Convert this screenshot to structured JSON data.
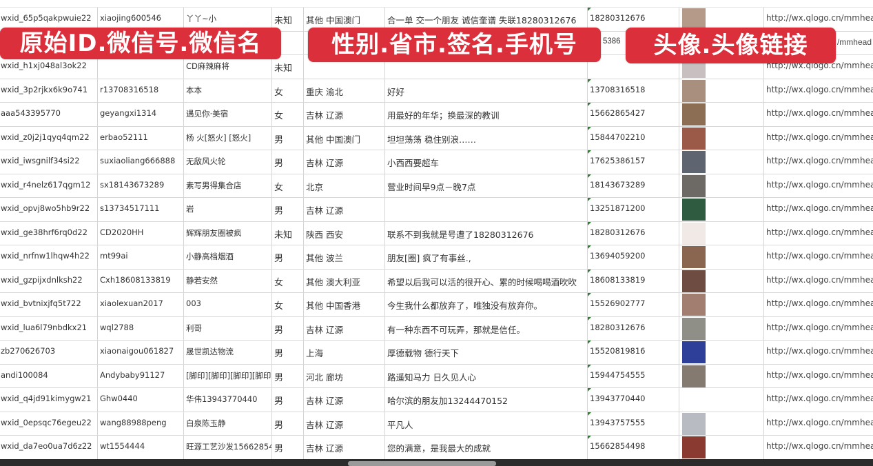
{
  "overlays": {
    "label_1": "原始ID.微信号.微信名",
    "label_2": "性别.省市.签名.手机号",
    "label_3": "头像.头像链接"
  },
  "colors": {
    "overlay": "#db2f3b"
  },
  "rows": [
    {
      "id": "wxid_65p5qakpwuie22",
      "wxid": "xiaojing600546",
      "name": "丫丫~小",
      "gender": "未知",
      "region": "其他 中国澳门",
      "sign": "合一单 交一个朋友 诚信奎谱 失联18280312676",
      "phone": "18280312676",
      "avatar_color": "#b59a8a",
      "url": "http://wx.qlogo.cn/mmhead"
    },
    {
      "id": "",
      "wxid": "",
      "name": "",
      "gender": "",
      "region": "",
      "sign": "",
      "phone": "5386",
      "avatar_color": "#7a8fb0",
      "url": "/mmhead"
    },
    {
      "id": "wxid_h1xj048al3ok22",
      "wxid": "",
      "name": "CD麻辣麻将",
      "gender": "未知",
      "region": "",
      "sign": "",
      "phone": "",
      "avatar_color": "#c8c0c0",
      "url": "http://wx.qlogo.cn/mmhead"
    },
    {
      "id": "wxid_3p2rjkx6k9o741",
      "wxid": "r13708316518",
      "name": "本本",
      "gender": "女",
      "region": "重庆 渝北",
      "sign": "好好",
      "phone": "13708316518",
      "avatar_color": "#a88f7e",
      "url": "http://wx.qlogo.cn/mmhead"
    },
    {
      "id": "aaa543395770",
      "wxid": "geyangxi1314",
      "name": "遇见你·美宿",
      "gender": "女",
      "region": "吉林 辽源",
      "sign": "用最好的年华；换最深的教训",
      "phone": "15662865427",
      "avatar_color": "#8c6e55",
      "url": "http://wx.qlogo.cn/mmhead"
    },
    {
      "id": "wxid_z0j2j1qyq4qm22",
      "wxid": "erbao52111",
      "name": "杨 火[怒火] [怒火]",
      "gender": "男",
      "region": "其他 中国澳门",
      "sign": "坦坦荡荡 稳住别浪……",
      "phone": "15844702210",
      "avatar_color": "#9b5a48",
      "url": "http://wx.qlogo.cn/mmhead"
    },
    {
      "id": "wxid_iwsgnilf34si22",
      "wxid": "suxiaoliang666888",
      "name": "无敌风火轮",
      "gender": "男",
      "region": "吉林 辽源",
      "sign": "小西西要超车",
      "phone": "17625386157",
      "avatar_color": "#5e6470",
      "url": "http://wx.qlogo.cn/mmhead"
    },
    {
      "id": "wxid_r4nelz617qgm12",
      "wxid": "sx18143673289",
      "name": "素写男得集合店",
      "gender": "女",
      "region": "北京",
      "sign": "营业时间早9点－晚7点",
      "phone": "18143673289",
      "avatar_color": "#6d6a66",
      "url": "http://wx.qlogo.cn/mmhead"
    },
    {
      "id": "wxid_opvj8wo5hb9r22",
      "wxid": "s13734517111",
      "name": "岩",
      "gender": "男",
      "region": "吉林 辽源",
      "sign": "",
      "phone": "13251871200",
      "avatar_color": "#2f5b40",
      "url": "http://wx.qlogo.cn/mmhead"
    },
    {
      "id": "wxid_ge38hrf6rq0d22",
      "wxid": "CD2020HH",
      "name": "辉辉朋友圈被疯",
      "gender": "未知",
      "region": "陕西 西安",
      "sign": "联系不到我就是号遭了18280312676",
      "phone": "18280312676",
      "avatar_color": "#f1e9e6",
      "url": "http://wx.qlogo.cn/mmhead"
    },
    {
      "id": "wxid_nrfnw1lhqw4h22",
      "wxid": "mt99ai",
      "name": "小静高档烟酒",
      "gender": "男",
      "region": "其他 波兰",
      "sign": "朋友[圈] 疯了有事丝.,",
      "phone": "13694059200",
      "avatar_color": "#8a6650",
      "url": "http://wx.qlogo.cn/mmhead"
    },
    {
      "id": "wxid_gzpijxdnlksh22",
      "wxid": "Cxh18608133819",
      "name": "静若安然",
      "gender": "女",
      "region": "其他 澳大利亚",
      "sign": "希望以后我可以活的很开心、累的时候喝喝酒吹吹",
      "phone": "18608133819",
      "avatar_color": "#6e4c42",
      "url": "http://wx.qlogo.cn/mmhead"
    },
    {
      "id": "wxid_bvtnixjfq5t722",
      "wxid": "xiaolexuan2017",
      "name": "003",
      "gender": "女",
      "region": "其他 中国香港",
      "sign": "今生我什么都放弃了，唯独没有放弃你。",
      "phone": "15526902777",
      "avatar_color": "#a27e70",
      "url": "http://wx.qlogo.cn/mmhead"
    },
    {
      "id": "wxid_lua6l79nbdkx21",
      "wxid": "wql2788",
      "name": "利哥",
      "gender": "男",
      "region": "吉林 辽源",
      "sign": "有一种东西不可玩弄，那就是信任。",
      "phone": "18280312676",
      "avatar_color": "#8f8f88",
      "url": "http://wx.qlogo.cn/mmhead"
    },
    {
      "id": "zb270626703",
      "wxid": "xiaonaigou061827",
      "name": "晟世凯达物流",
      "gender": "男",
      "region": "上海",
      "sign": "厚德载物 德行天下",
      "phone": "15520819816",
      "avatar_color": "#2e3f9a",
      "url": "http://wx.qlogo.cn/mmhead"
    },
    {
      "id": "andi100084",
      "wxid": "Andybaby91127",
      "name": "[脚印][脚印][脚印][脚印]",
      "gender": "男",
      "region": "河北 廊坊",
      "sign": "路遥知马力 日久见人心",
      "phone": "15944754555",
      "avatar_color": "#857a70",
      "url": "http://wx.qlogo.cn/mmhead"
    },
    {
      "id": "wxid_q4jd91kimygw21",
      "wxid": "Ghw0440",
      "name": "华伟13943770440",
      "gender": "男",
      "region": "吉林 辽源",
      "sign": "哈尔滨的朋友加13244470152",
      "phone": "13943770440",
      "avatar_color": "#ffffff",
      "url": "http://wx.qlogo.cn/mmhead"
    },
    {
      "id": "wxid_0epsqc76egeu22",
      "wxid": "wang88988peng",
      "name": "白泉陈玉静",
      "gender": "男",
      "region": "吉林 辽源",
      "sign": "平凡人",
      "phone": "13943757555",
      "avatar_color": "#b8bcc2",
      "url": "http://wx.qlogo.cn/mmhead"
    },
    {
      "id": "wxid_da7eo0ua7d6z22",
      "wxid": "wt1554444",
      "name": "旺源工艺沙发15662854",
      "gender": "男",
      "region": "吉林 辽源",
      "sign": "您的满意，是我最大的成就",
      "phone": "15662854498",
      "avatar_color": "#8a3a30",
      "url": "http://wx.qlogo.cn/mmhead"
    }
  ]
}
